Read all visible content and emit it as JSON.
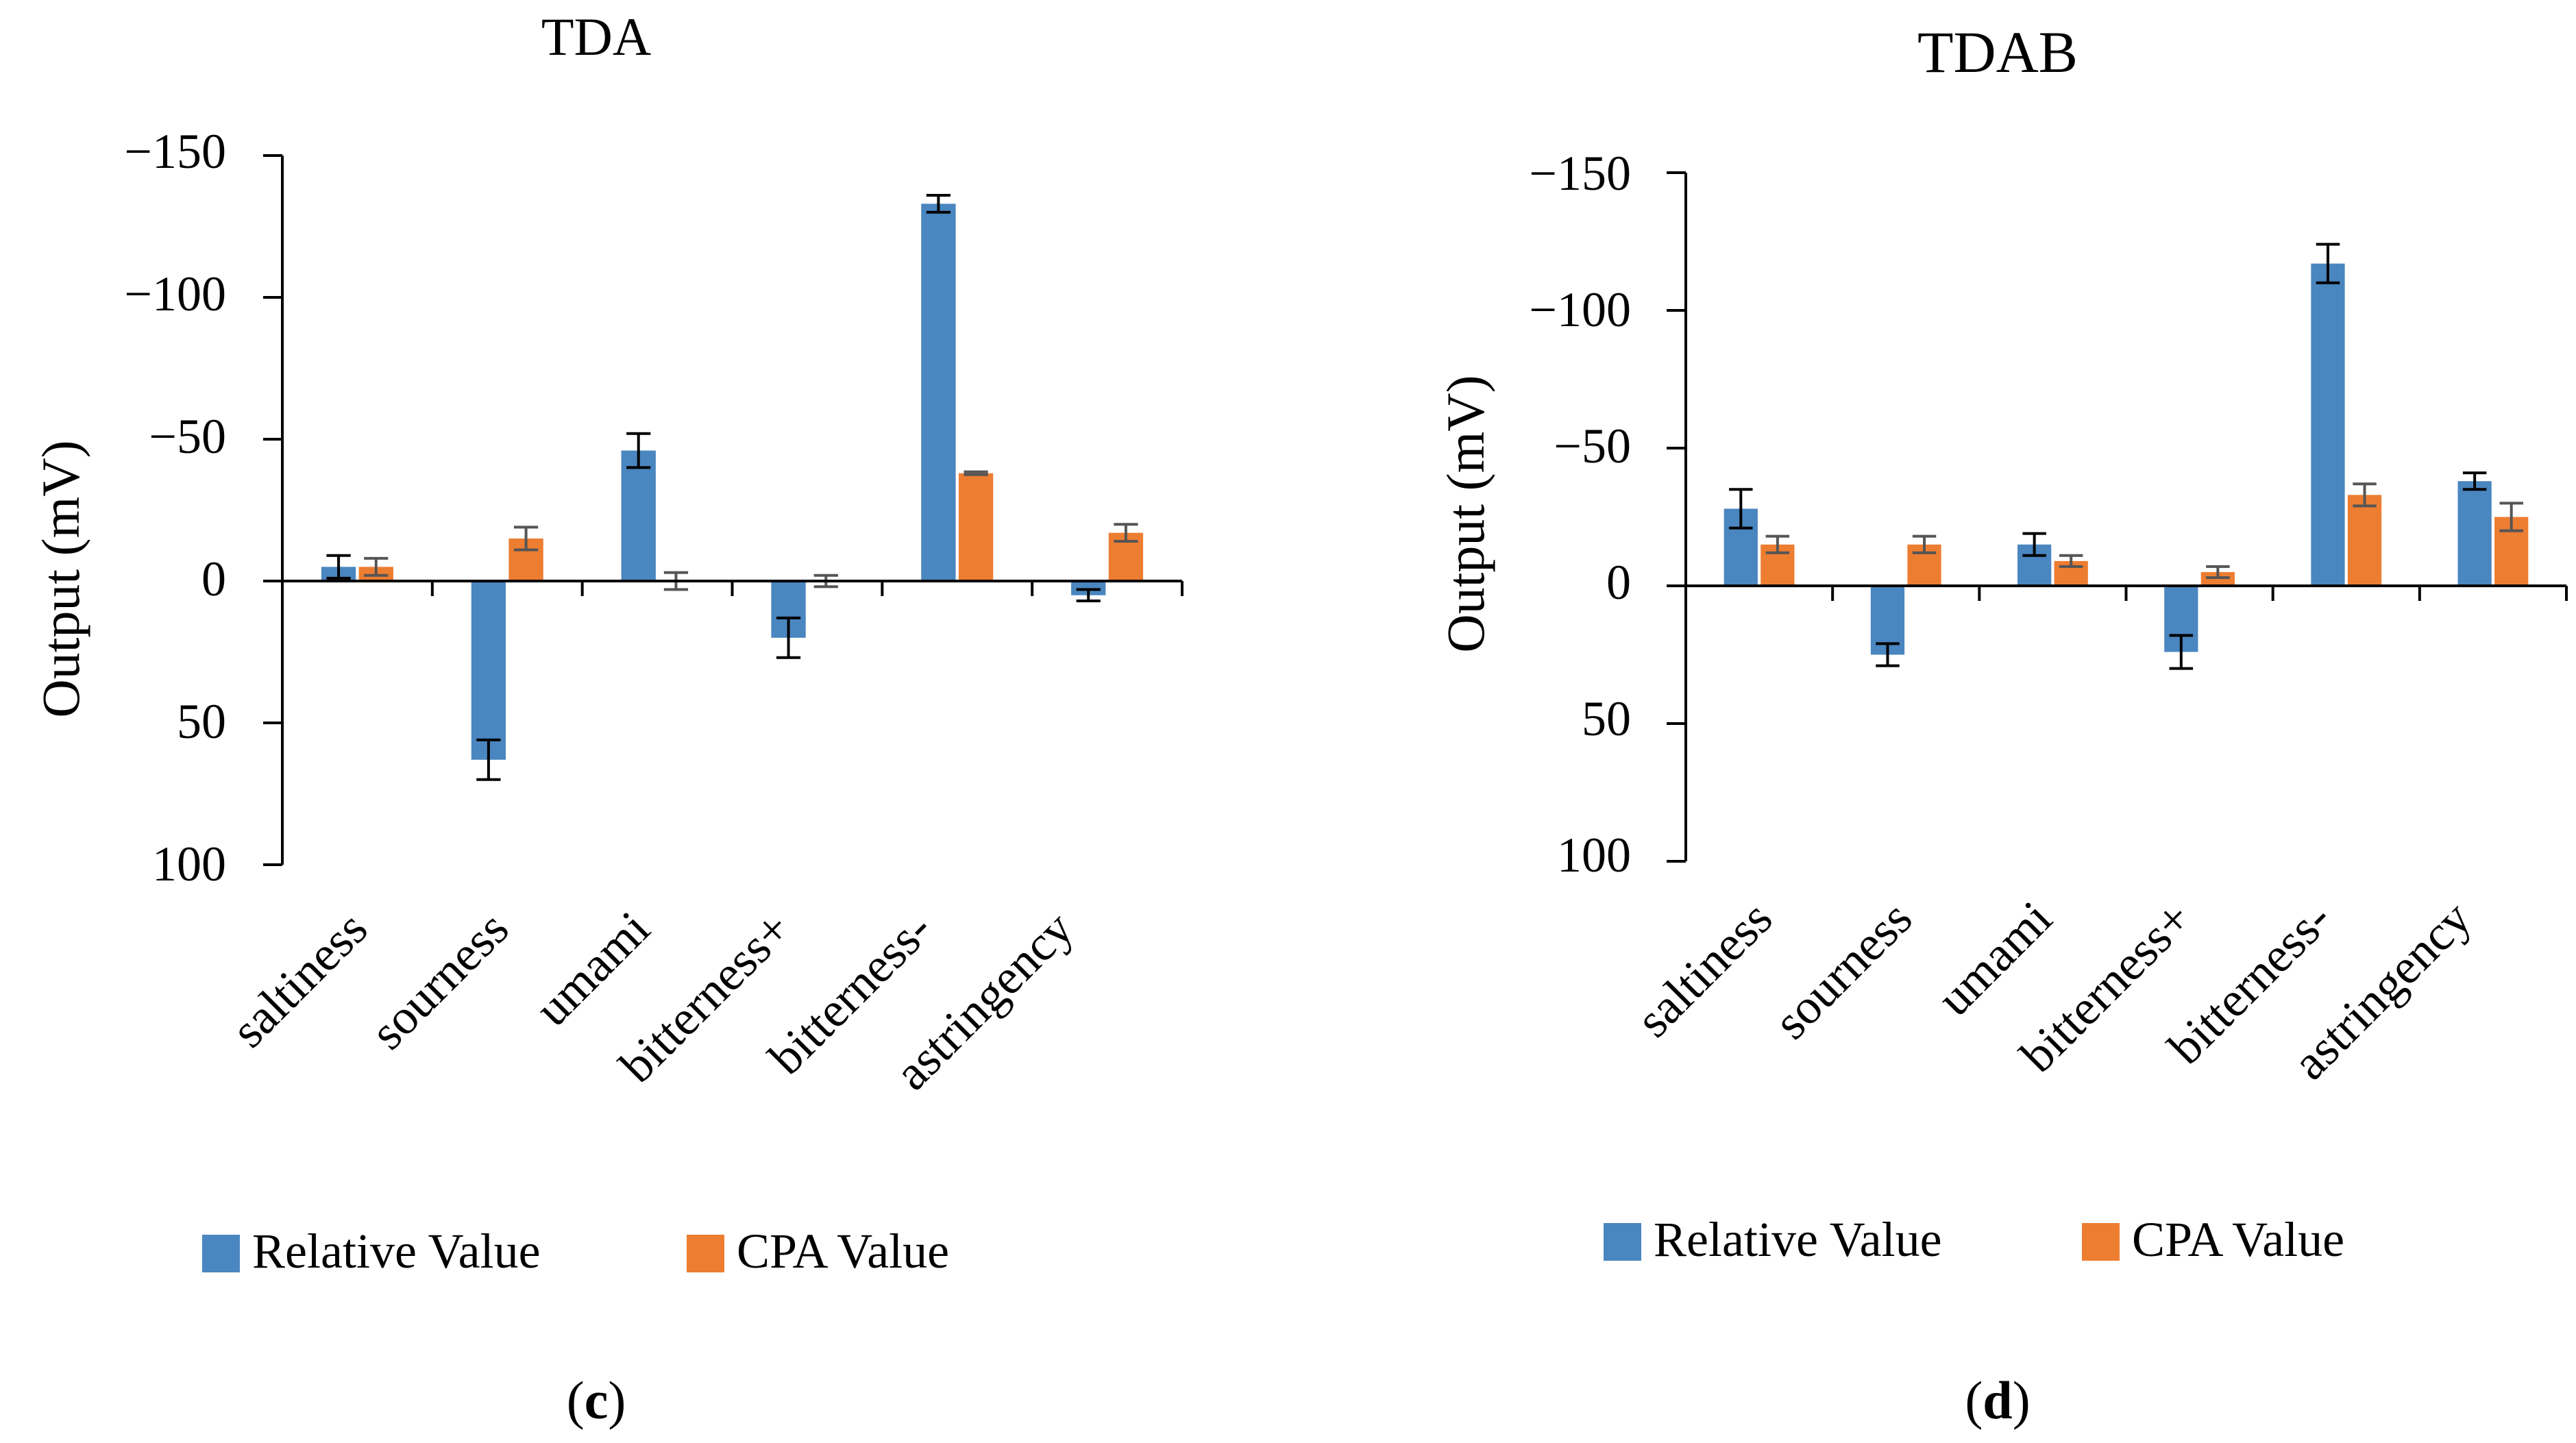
{
  "colors": {
    "relative": "#4a86c0",
    "cpa": "#ed7d31",
    "axis": "#000000",
    "error_relative": "#000000",
    "error_cpa": "#555555"
  },
  "chart_data": [
    {
      "type": "bar",
      "title": "TDA",
      "panel_label_open": "(",
      "panel_label": "c",
      "panel_label_close": ")",
      "xlabel": "",
      "ylabel": "Output (mV)",
      "ylim": [
        -150,
        100
      ],
      "yticks": [
        -150,
        -100,
        -50,
        0,
        50,
        100
      ],
      "ytick_labels": [
        "−150",
        "−100",
        "−50",
        "0",
        "50",
        "100"
      ],
      "axis_inverted": true,
      "categories": [
        "saltiness",
        "sourness",
        "umami",
        "bitterness+",
        "bitterness-",
        "astringency"
      ],
      "series": [
        {
          "name": "Relative Value",
          "values": [
            -5,
            63,
            -46,
            20,
            -133,
            5
          ],
          "errors": [
            4,
            7,
            6,
            7,
            3,
            2
          ]
        },
        {
          "name": "CPA Value",
          "values": [
            -5,
            -15,
            0,
            0,
            -38,
            -17
          ],
          "errors": [
            3,
            4,
            3,
            2,
            0.5,
            3
          ]
        }
      ],
      "legend": [
        "Relative Value",
        "CPA Value"
      ],
      "legend_position": "bottom"
    },
    {
      "type": "bar",
      "title": "TDAB",
      "panel_label_open": "(",
      "panel_label": "d",
      "panel_label_close": ")",
      "xlabel": "",
      "ylabel": "Output (mV)",
      "ylim": [
        -150,
        100
      ],
      "yticks": [
        -150,
        -100,
        -50,
        0,
        50,
        100
      ],
      "ytick_labels": [
        "−150",
        "−100",
        "−50",
        "0",
        "50",
        "100"
      ],
      "axis_inverted": true,
      "categories": [
        "saltiness",
        "sourness",
        "umami",
        "bitterness+",
        "bitterness-",
        "astringency"
      ],
      "series": [
        {
          "name": "Relative Value",
          "values": [
            -28,
            25,
            -15,
            24,
            -117,
            -38
          ],
          "errors": [
            7,
            4,
            4,
            6,
            7,
            3
          ]
        },
        {
          "name": "CPA Value",
          "values": [
            -15,
            -15,
            -9,
            -5,
            -33,
            -25
          ],
          "errors": [
            3,
            3,
            2,
            2,
            4,
            5
          ]
        }
      ],
      "legend": [
        "Relative Value",
        "CPA Value"
      ],
      "legend_position": "bottom"
    }
  ]
}
